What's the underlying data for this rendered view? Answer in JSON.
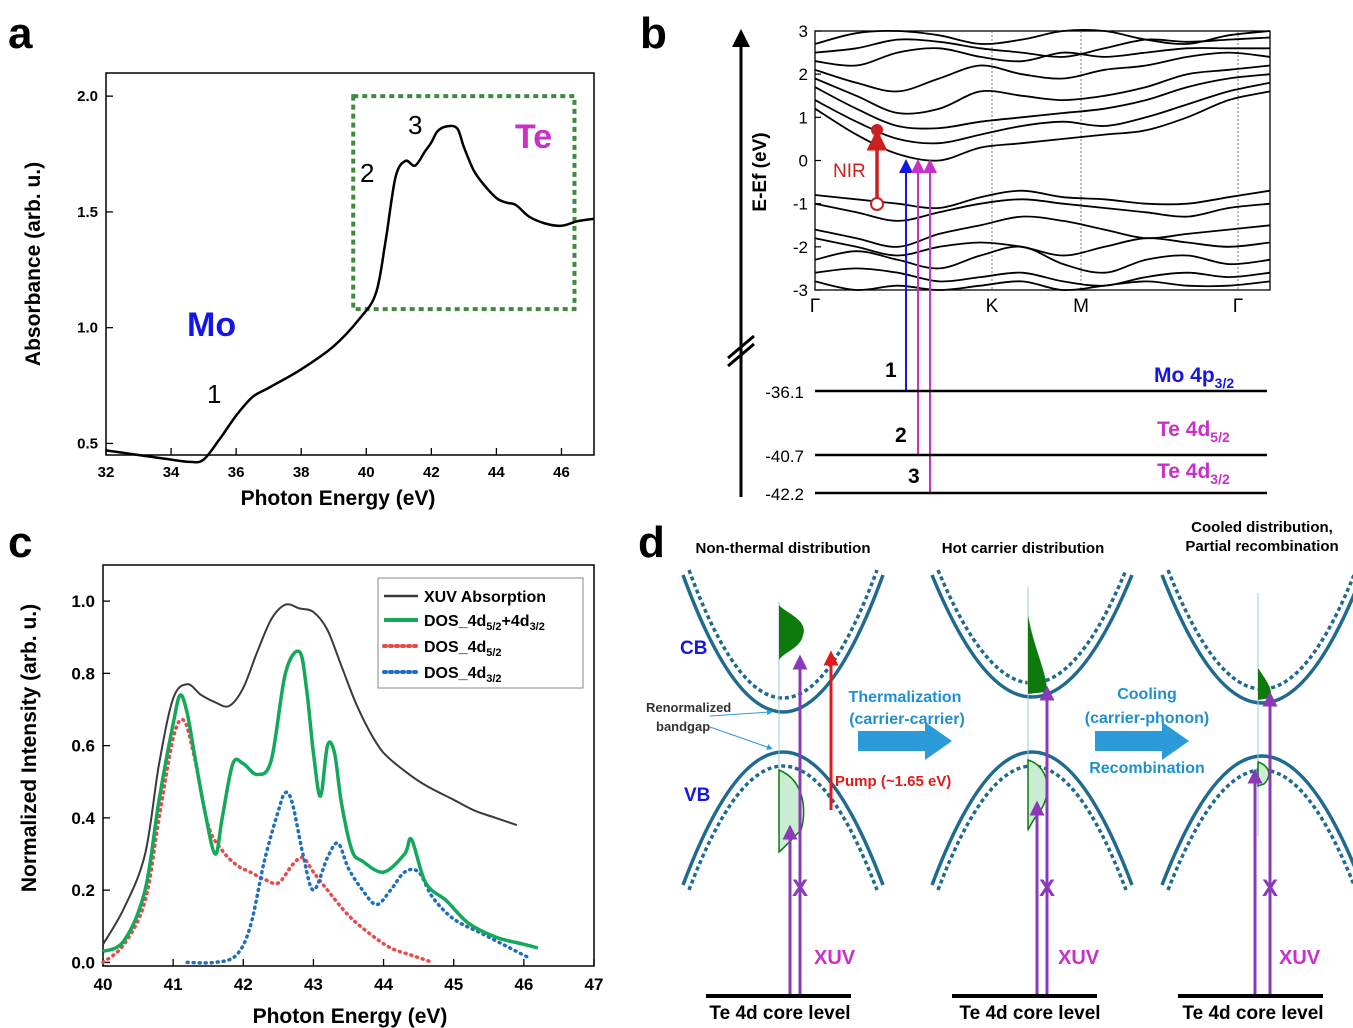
{
  "chart_data": [
    {
      "panel": "a",
      "type": "line",
      "xlabel": "Photon Energy (eV)",
      "ylabel": "Absorbance (arb. u.)",
      "xlim": [
        32,
        47
      ],
      "ylim": [
        0.45,
        2.1
      ],
      "x_ticks": [
        "32",
        "34",
        "36",
        "38",
        "40",
        "42",
        "44",
        "46"
      ],
      "y_ticks": [
        "0.5",
        "1.0",
        "1.5",
        "2.0"
      ],
      "series": [
        {
          "color": "#000000",
          "x": [
            32.0,
            33.0,
            34.0,
            34.6,
            35.0,
            35.5,
            36.0,
            36.5,
            37.0,
            38.0,
            39.0,
            39.8,
            40.3,
            40.6,
            40.9,
            41.2,
            41.5,
            41.8,
            42.0,
            42.2,
            42.5,
            42.8,
            43.0,
            43.3,
            43.6,
            44.0,
            44.3,
            44.6,
            45.0,
            45.5,
            46.0,
            46.5,
            47.0
          ],
          "y": [
            0.47,
            0.45,
            0.43,
            0.42,
            0.43,
            0.52,
            0.62,
            0.7,
            0.74,
            0.82,
            0.92,
            1.04,
            1.15,
            1.38,
            1.65,
            1.72,
            1.7,
            1.76,
            1.8,
            1.85,
            1.87,
            1.86,
            1.78,
            1.68,
            1.62,
            1.56,
            1.54,
            1.53,
            1.48,
            1.45,
            1.44,
            1.46,
            1.47
          ]
        }
      ],
      "annotations": [
        {
          "text": "Mo",
          "color": "#1515e6"
        },
        {
          "text": "Te",
          "color": "#c830c8"
        },
        {
          "text": "1"
        },
        {
          "text": "2"
        },
        {
          "text": "3"
        }
      ],
      "highlight_box": {
        "x": [
          39.6,
          46.4
        ],
        "y": [
          1.08,
          2.0
        ],
        "color": "#3f8a3f"
      }
    },
    {
      "panel": "b",
      "type": "line",
      "ylabel": "E-Ef (eV)",
      "ylim": [
        -3,
        3
      ],
      "y_ticks": [
        "3",
        "2",
        "1",
        "0",
        "-1",
        "-2",
        "-3"
      ],
      "k_labels": [
        "Γ",
        "K",
        "M",
        "Γ"
      ],
      "bands": [
        [
          2.7,
          2.95,
          3.0,
          2.9,
          2.7,
          2.8,
          3.0,
          3.0,
          2.8,
          2.7,
          2.9,
          3.0
        ],
        [
          2.5,
          2.6,
          2.8,
          2.75,
          2.6,
          2.5,
          2.4,
          2.6,
          2.8,
          2.75,
          2.8,
          2.85
        ],
        [
          2.3,
          2.2,
          2.5,
          2.6,
          2.4,
          2.3,
          2.5,
          2.4,
          2.5,
          2.6,
          2.6,
          2.6
        ],
        [
          2.1,
          1.8,
          1.6,
          1.9,
          2.2,
          2.0,
          1.9,
          2.1,
          2.2,
          2.4,
          2.5,
          2.4
        ],
        [
          1.9,
          1.5,
          1.1,
          1.2,
          1.6,
          1.5,
          1.4,
          1.5,
          1.7,
          2.0,
          2.1,
          2.2
        ],
        [
          1.7,
          1.2,
          0.8,
          0.75,
          0.9,
          1.0,
          1.1,
          1.2,
          1.4,
          1.7,
          1.9,
          2.0
        ],
        [
          1.4,
          0.9,
          0.5,
          0.4,
          0.6,
          0.8,
          0.9,
          0.8,
          1.0,
          1.3,
          1.6,
          1.8
        ],
        [
          1.2,
          0.6,
          0.15,
          0.0,
          0.3,
          0.4,
          0.5,
          0.6,
          0.7,
          1.0,
          1.4,
          1.6
        ],
        [
          -0.8,
          -0.9,
          -1.0,
          -1.1,
          -0.85,
          -0.7,
          -0.85,
          -0.9,
          -1.0,
          -1.0,
          -0.85,
          -0.7
        ],
        [
          -1.0,
          -1.2,
          -1.4,
          -1.2,
          -1.0,
          -0.9,
          -1.0,
          -1.1,
          -1.2,
          -1.3,
          -1.1,
          -1.0
        ],
        [
          -1.6,
          -1.8,
          -2.0,
          -1.7,
          -1.5,
          -1.3,
          -1.4,
          -1.6,
          -1.8,
          -1.7,
          -1.6,
          -1.5
        ],
        [
          -1.8,
          -2.0,
          -2.2,
          -2.0,
          -1.9,
          -2.0,
          -2.2,
          -2.0,
          -1.8,
          -1.9,
          -2.0,
          -1.9
        ],
        [
          -2.3,
          -2.1,
          -2.3,
          -2.5,
          -2.2,
          -2.0,
          -2.4,
          -2.6,
          -2.3,
          -2.2,
          -2.4,
          -2.3
        ],
        [
          -2.6,
          -2.5,
          -2.6,
          -2.8,
          -2.7,
          -2.6,
          -2.8,
          -2.9,
          -2.7,
          -2.6,
          -2.7,
          -2.6
        ],
        [
          -2.8,
          -3.0,
          -2.9,
          -3.0,
          -2.9,
          -2.8,
          -3.0,
          -2.9,
          -2.8,
          -2.9,
          -2.9,
          -2.8
        ]
      ],
      "core_levels": [
        {
          "energy": "-36.1",
          "label_main": "Mo 4p",
          "label_sub": "3/2",
          "marker": "1",
          "color": "#1515e6"
        },
        {
          "energy": "-40.7",
          "label_main": "Te 4d",
          "label_sub": "5/2",
          "marker": "2",
          "color": "#c830c8"
        },
        {
          "energy": "-42.2",
          "label_main": "Te 4d",
          "label_sub": "3/2",
          "marker": "3",
          "color": "#c830c8"
        }
      ],
      "nir_label": "NIR",
      "colors": {
        "nir": "#cc1f1f",
        "mo": "#1515e6",
        "te": "#c830c8"
      }
    },
    {
      "panel": "c",
      "type": "line",
      "xlabel": "Photon Energy (eV)",
      "ylabel": "Normalized Intensity (arb. u.)",
      "xlim": [
        40,
        47
      ],
      "ylim": [
        -0.01,
        1.1
      ],
      "x_ticks": [
        "40",
        "41",
        "42",
        "43",
        "44",
        "45",
        "46",
        "47"
      ],
      "y_ticks": [
        "0.0",
        "0.2",
        "0.4",
        "0.6",
        "0.8",
        "1.0"
      ],
      "series": [
        {
          "name": "XUV Absorption",
          "color": "#3a3a3a",
          "style": "solid",
          "x": [
            40.0,
            40.3,
            40.6,
            40.8,
            41.0,
            41.2,
            41.4,
            41.6,
            41.8,
            42.0,
            42.2,
            42.4,
            42.6,
            42.8,
            43.0,
            43.2,
            43.4,
            43.6,
            43.8,
            44.0,
            44.3,
            44.6,
            45.0,
            45.3,
            45.6,
            45.9
          ],
          "y": [
            0.05,
            0.15,
            0.3,
            0.55,
            0.73,
            0.77,
            0.74,
            0.72,
            0.71,
            0.76,
            0.86,
            0.95,
            0.99,
            0.98,
            0.97,
            0.92,
            0.82,
            0.72,
            0.64,
            0.58,
            0.53,
            0.49,
            0.45,
            0.42,
            0.4,
            0.38
          ]
        },
        {
          "name": "DOS_4d",
          "name_sub1": "5/2",
          "name_mid": "+4d",
          "name_sub2": "3/2",
          "color": "#13a85a",
          "style": "solid",
          "x": [
            40.0,
            40.3,
            40.6,
            40.8,
            41.0,
            41.1,
            41.2,
            41.3,
            41.45,
            41.6,
            41.7,
            41.85,
            42.0,
            42.2,
            42.4,
            42.6,
            42.8,
            42.9,
            43.0,
            43.1,
            43.2,
            43.3,
            43.4,
            43.55,
            43.7,
            44.0,
            44.3,
            44.4,
            44.6,
            44.9,
            45.2,
            45.6,
            46.0,
            46.2
          ],
          "y": [
            0.03,
            0.06,
            0.2,
            0.45,
            0.66,
            0.74,
            0.69,
            0.58,
            0.42,
            0.3,
            0.4,
            0.55,
            0.55,
            0.52,
            0.56,
            0.8,
            0.86,
            0.76,
            0.58,
            0.46,
            0.6,
            0.58,
            0.44,
            0.31,
            0.28,
            0.25,
            0.3,
            0.34,
            0.22,
            0.17,
            0.11,
            0.07,
            0.05,
            0.04
          ]
        },
        {
          "name": "DOS_4d",
          "name_sub1": "5/2",
          "color": "#e84a4a",
          "style": "dotted",
          "x": [
            40.0,
            40.3,
            40.6,
            40.8,
            41.0,
            41.15,
            41.3,
            41.5,
            41.7,
            41.9,
            42.1,
            42.3,
            42.5,
            42.7,
            42.85,
            43.0,
            43.2,
            43.5,
            43.8,
            44.1,
            44.4,
            44.7
          ],
          "y": [
            0.0,
            0.05,
            0.17,
            0.4,
            0.62,
            0.67,
            0.57,
            0.38,
            0.31,
            0.27,
            0.25,
            0.23,
            0.22,
            0.27,
            0.29,
            0.25,
            0.2,
            0.13,
            0.08,
            0.04,
            0.02,
            0.0
          ]
        },
        {
          "name": "DOS_4d",
          "name_sub1": "3/2",
          "color": "#1e6fc0",
          "style": "dotted",
          "x": [
            41.2,
            41.6,
            41.9,
            42.1,
            42.3,
            42.5,
            42.6,
            42.7,
            42.85,
            43.0,
            43.2,
            43.35,
            43.5,
            43.7,
            43.9,
            44.1,
            44.3,
            44.5,
            44.7,
            45.0,
            45.4,
            45.8,
            46.1
          ],
          "y": [
            0.0,
            0.0,
            0.02,
            0.1,
            0.28,
            0.42,
            0.47,
            0.44,
            0.3,
            0.2,
            0.29,
            0.33,
            0.26,
            0.2,
            0.16,
            0.2,
            0.25,
            0.25,
            0.18,
            0.12,
            0.08,
            0.04,
            0.01
          ]
        }
      ],
      "legend_position": "top-right"
    }
  ],
  "panel_labels": [
    "a",
    "b",
    "c",
    "d"
  ],
  "schematic_d": {
    "titles": [
      "Non-thermal distribution",
      "Hot carrier distribution",
      "Cooled distribution,\nPartial recombination"
    ],
    "cb_label": "CB",
    "vb_label": "VB",
    "renorm_label_1": "Renormalized",
    "renorm_label_2": "bandgap",
    "arrow1_line1": "Thermalization",
    "arrow1_line2": "(carrier-carrier)",
    "arrow2_line1": "Cooling",
    "arrow2_line2": "(carrier-phonon)",
    "recombination": "Recombination",
    "pump_label": "Pump (~1.65 eV)",
    "xuv_label": "XUV",
    "x_mark": "X",
    "core_label": "Te 4d core level",
    "colors": {
      "band": "#1f6a8e",
      "fill": "#0e7a0e",
      "fill_light": "#c9ecd2",
      "xuv": "#8a3ab9",
      "pump": "#e01a1a",
      "arrow": "#2a9bd8",
      "label_blue": "#1515e6",
      "xuv_text": "#c830c8"
    }
  }
}
